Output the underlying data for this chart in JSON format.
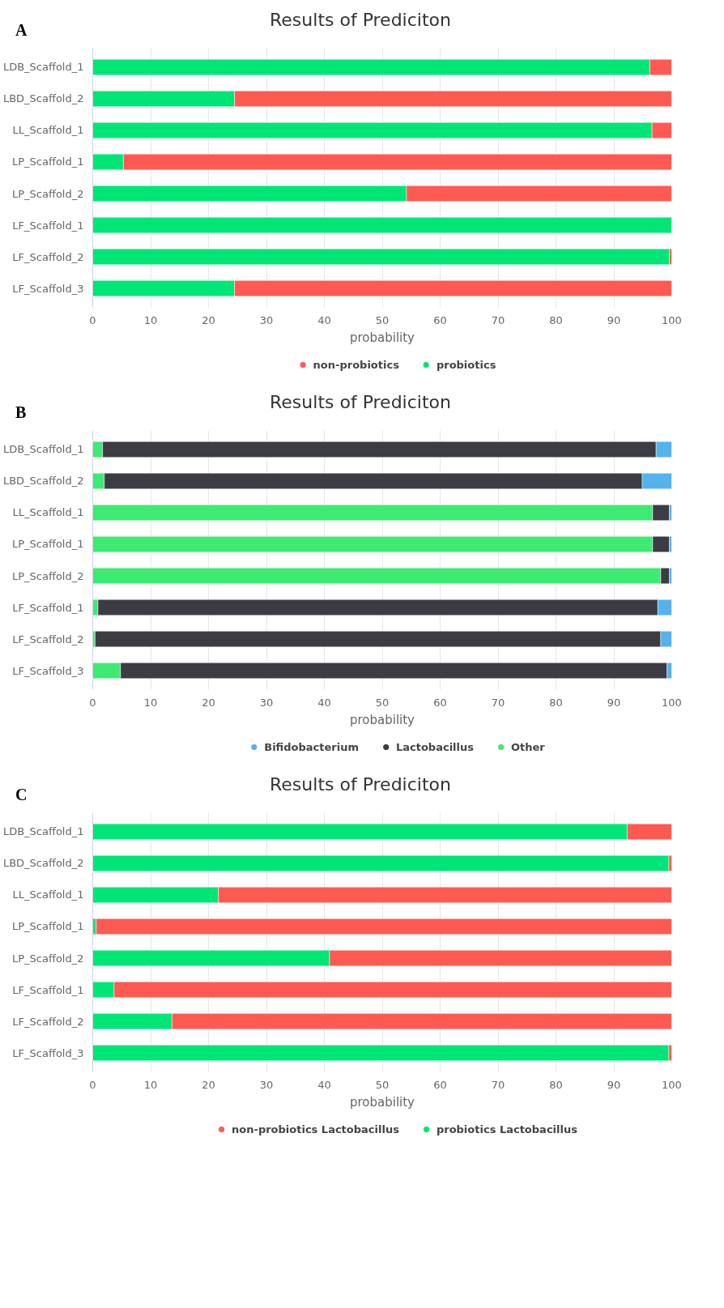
{
  "chart_data": [
    {
      "type": "bar",
      "orientation": "horizontal",
      "stacked": true,
      "title": "Results of Prediciton",
      "annotations": [
        "A"
      ],
      "xlabel": "probability",
      "categories": [
        "LDB_Scaffold_1",
        "LBD_Scaffold_2",
        "LL_Scaffold_1",
        "LP_Scaffold_1",
        "LP_Scaffold_2",
        "LF_Scaffold_1",
        "LF_Scaffold_2",
        "LF_Scaffold_3"
      ],
      "series": [
        {
          "name": "probiotics",
          "color": "#00e676",
          "values": [
            96.2,
            24.5,
            96.6,
            5.3,
            54.2,
            100,
            99.6,
            24.5
          ]
        },
        {
          "name": "non-probiotics",
          "color": "#ff5a52",
          "values": [
            3.8,
            75.5,
            3.4,
            94.7,
            45.8,
            null,
            0.4,
            75.5
          ]
        }
      ],
      "xlim": [
        0,
        100
      ],
      "xticks": [
        0,
        10,
        20,
        30,
        40,
        50,
        60,
        70,
        80,
        90,
        100
      ],
      "grid": "x",
      "legend": "bottom"
    },
    {
      "type": "bar",
      "orientation": "horizontal",
      "stacked": true,
      "title": "Results of Prediciton",
      "annotations": [
        "B"
      ],
      "xlabel": "probability",
      "categories": [
        "LDB_Scaffold_1",
        "LBD_Scaffold_2",
        "LL_Scaffold_1",
        "LP_Scaffold_1",
        "LP_Scaffold_2",
        "LF_Scaffold_1",
        "LF_Scaffold_2",
        "LF_Scaffold_3"
      ],
      "series": [
        {
          "name": "Other",
          "color": "#3fea73",
          "values": [
            1.7,
            2.0,
            96.7,
            96.7,
            98.1,
            0.9,
            0.4,
            4.8
          ]
        },
        {
          "name": "Lactobacillus",
          "color": "#3c3c44",
          "values": [
            95.6,
            92.9,
            2.9,
            2.9,
            1.5,
            96.7,
            97.7,
            94.4
          ]
        },
        {
          "name": "Bifidobacterium",
          "color": "#54b3ea",
          "values": [
            2.7,
            5.1,
            0.4,
            0.4,
            0.4,
            2.4,
            1.9,
            0.8
          ]
        }
      ],
      "xlim": [
        0,
        100
      ],
      "xticks": [
        0,
        10,
        20,
        30,
        40,
        50,
        60,
        70,
        80,
        90,
        100
      ],
      "grid": "x",
      "legend": "bottom"
    },
    {
      "type": "bar",
      "orientation": "horizontal",
      "stacked": true,
      "title": "Results of Prediciton",
      "annotations": [
        "C"
      ],
      "xlabel": "probability",
      "categories": [
        "LDB_Scaffold_1",
        "LBD_Scaffold_2",
        "LL_Scaffold_1",
        "LP_Scaffold_1",
        "LP_Scaffold_2",
        "LF_Scaffold_1",
        "LF_Scaffold_2",
        "LF_Scaffold_3"
      ],
      "series": [
        {
          "name": "probiotics Lactobacillus",
          "color": "#00e676",
          "values": [
            92.3,
            99.5,
            21.7,
            0.6,
            40.9,
            3.7,
            13.7,
            99.5
          ]
        },
        {
          "name": "non-probiotics Lactobacillus",
          "color": "#ff5a52",
          "values": [
            7.7,
            0.5,
            78.3,
            99.4,
            59.1,
            96.3,
            86.3,
            0.5
          ]
        }
      ],
      "xlim": [
        0,
        100
      ],
      "xticks": [
        0,
        10,
        20,
        30,
        40,
        50,
        60,
        70,
        80,
        90,
        100
      ],
      "grid": "x",
      "legend": "bottom"
    }
  ]
}
